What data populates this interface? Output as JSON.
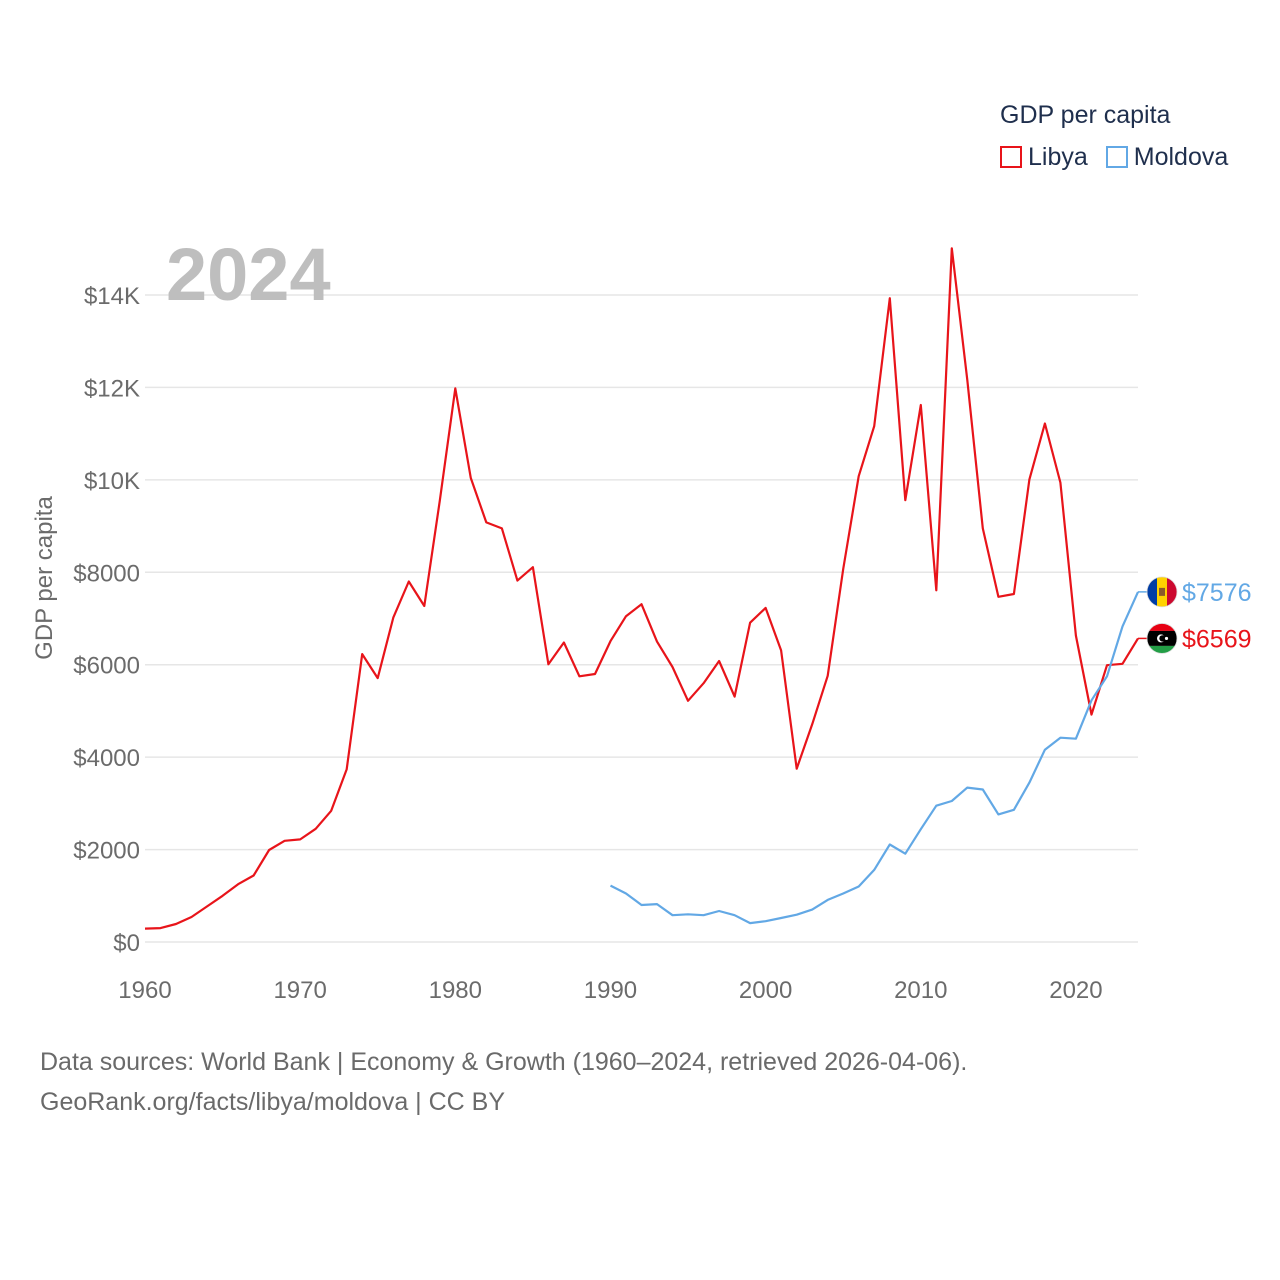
{
  "legend": {
    "title": "GDP per capita",
    "items": [
      {
        "name": "Libya",
        "color": "#e8141a"
      },
      {
        "name": "Moldova",
        "color": "#62a8e5"
      }
    ]
  },
  "footer": {
    "line1": "Data sources: World Bank | Economy & Growth (1960–2024, retrieved 2026-04-06).",
    "line2": "GeoRank.org/facts/libya/moldova | CC BY"
  },
  "chart_data": {
    "type": "line",
    "title": "2024",
    "xlabel": "",
    "ylabel": "GDP per capita",
    "xlim": [
      1960,
      2024
    ],
    "ylim": [
      0,
      15000
    ],
    "x_ticks": [
      1960,
      1970,
      1980,
      1990,
      2000,
      2010,
      2020
    ],
    "y_ticks": [
      0,
      2000,
      4000,
      6000,
      8000,
      10000,
      12000,
      14000
    ],
    "y_tick_labels": [
      "$0",
      "$2000",
      "$4000",
      "$6000",
      "$8000",
      "$10K",
      "$12K",
      "$14K"
    ],
    "grid": true,
    "legend_position": "top-right",
    "series": [
      {
        "name": "Libya",
        "color": "#e8141a",
        "end_label": "$6569",
        "x": [
          1960,
          1961,
          1962,
          1963,
          1964,
          1965,
          1966,
          1967,
          1968,
          1969,
          1970,
          1971,
          1972,
          1973,
          1974,
          1975,
          1976,
          1977,
          1978,
          1979,
          1980,
          1981,
          1982,
          1983,
          1984,
          1985,
          1986,
          1987,
          1988,
          1989,
          1990,
          1991,
          1992,
          1993,
          1994,
          1995,
          1996,
          1997,
          1998,
          1999,
          2000,
          2001,
          2002,
          2003,
          2004,
          2005,
          2006,
          2007,
          2008,
          2009,
          2010,
          2011,
          2012,
          2013,
          2014,
          2015,
          2016,
          2017,
          2018,
          2019,
          2020,
          2021,
          2022,
          2023,
          2024
        ],
        "values": [
          290,
          300,
          390,
          540,
          770,
          1000,
          1250,
          1440,
          1990,
          2190,
          2220,
          2450,
          2840,
          3740,
          6230,
          5710,
          7020,
          7800,
          7270,
          9550,
          11980,
          10040,
          9080,
          8950,
          7820,
          8110,
          6010,
          6480,
          5750,
          5800,
          6510,
          7050,
          7310,
          6500,
          5950,
          5220,
          5600,
          6080,
          5310,
          6910,
          7230,
          6310,
          3750,
          4710,
          5760,
          8070,
          10080,
          11160,
          13930,
          9560,
          11620,
          7610,
          15010,
          12160,
          8950,
          7470,
          7530,
          10010,
          11220,
          9940,
          6630,
          4920,
          5990,
          6020,
          6569
        ]
      },
      {
        "name": "Moldova",
        "color": "#62a8e5",
        "end_label": "$7576",
        "x": [
          1990,
          1991,
          1992,
          1993,
          1994,
          1995,
          1996,
          1997,
          1998,
          1999,
          2000,
          2001,
          2002,
          2003,
          2004,
          2005,
          2006,
          2007,
          2008,
          2009,
          2010,
          2011,
          2012,
          2013,
          2014,
          2015,
          2016,
          2017,
          2018,
          2019,
          2020,
          2021,
          2022,
          2023,
          2024
        ],
        "values": [
          1220,
          1050,
          800,
          820,
          580,
          600,
          580,
          670,
          580,
          410,
          450,
          520,
          590,
          700,
          910,
          1050,
          1200,
          1560,
          2110,
          1910,
          2440,
          2950,
          3050,
          3340,
          3300,
          2760,
          2860,
          3450,
          4160,
          4420,
          4400,
          5230,
          5750,
          6830,
          7576
        ]
      }
    ]
  }
}
